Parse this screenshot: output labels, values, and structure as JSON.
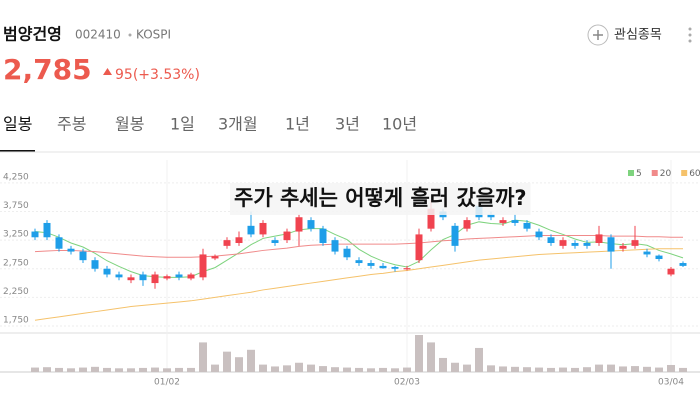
{
  "header": {
    "name": "범양건영",
    "code": "002410",
    "market": "KOSPI",
    "watch_label": "관심종목"
  },
  "price": {
    "value": "2,785",
    "change": "95(+3.53%)"
  },
  "tabs": {
    "items": [
      "일봉",
      "주봉",
      "월봉",
      "1일",
      "3개월",
      "1년",
      "3년",
      "10년"
    ],
    "selected": 0
  },
  "chart_data": {
    "type": "candlestick",
    "title": "주가 추세는 어떻게 흘러 갔을까?",
    "categories": [
      null,
      null,
      null,
      null,
      null,
      null,
      null,
      null,
      null,
      null,
      null,
      "01/02",
      null,
      null,
      null,
      null,
      null,
      null,
      null,
      null,
      null,
      null,
      null,
      null,
      null,
      null,
      null,
      null,
      null,
      null,
      null,
      "02/03",
      null,
      null,
      null,
      null,
      null,
      null,
      null,
      null,
      null,
      null,
      null,
      null,
      null,
      null,
      null,
      null,
      null,
      null,
      null,
      null,
      null,
      "03/04",
      null
    ],
    "open": [
      3400,
      3550,
      3300,
      3100,
      3050,
      2900,
      2750,
      2650,
      2550,
      2650,
      2500,
      2580,
      2650,
      2580,
      2600,
      2930,
      3150,
      3200,
      3500,
      3350,
      3250,
      3250,
      3400,
      3600,
      3450,
      3250,
      3100,
      2900,
      2850,
      2800,
      2780,
      2740,
      2900,
      3450,
      3750,
      3500,
      3450,
      3850,
      3700,
      3550,
      3600,
      3550,
      3400,
      3300,
      3150,
      3200,
      3200,
      3200,
      3300,
      3100,
      3150,
      3050,
      2980,
      2650,
      2850
    ],
    "high": [
      3450,
      3600,
      3350,
      3150,
      3100,
      2950,
      2800,
      2700,
      2650,
      2700,
      2700,
      2650,
      2700,
      2680,
      3100,
      3000,
      3300,
      3400,
      3750,
      3600,
      3300,
      3450,
      3700,
      3650,
      3500,
      3300,
      3150,
      2950,
      2900,
      2850,
      2800,
      2800,
      3450,
      3950,
      3800,
      3550,
      3650,
      3900,
      3750,
      3650,
      3700,
      3600,
      3450,
      3350,
      3300,
      3250,
      3250,
      3500,
      3350,
      3200,
      3500,
      3100,
      3000,
      2780,
      2880
    ],
    "low": [
      3250,
      3250,
      3050,
      3000,
      2850,
      2700,
      2600,
      2550,
      2500,
      2450,
      2400,
      2550,
      2550,
      2550,
      2550,
      2900,
      3100,
      3150,
      3300,
      3300,
      3150,
      3200,
      3150,
      3400,
      3150,
      3000,
      2900,
      2800,
      2750,
      2750,
      2700,
      2720,
      2850,
      3400,
      3600,
      3050,
      3400,
      3600,
      3600,
      3500,
      3500,
      3400,
      3250,
      3150,
      3100,
      3100,
      3100,
      3150,
      2750,
      3050,
      3100,
      2950,
      2880,
      2620,
      2780
    ],
    "close": [
      3300,
      3300,
      3100,
      3050,
      2900,
      2750,
      2650,
      2600,
      2600,
      2550,
      2650,
      2620,
      2600,
      2650,
      3000,
      2970,
      3250,
      3300,
      3350,
      3550,
      3200,
      3400,
      3650,
      3450,
      3200,
      3050,
      2950,
      2850,
      2800,
      2760,
      2750,
      2760,
      3350,
      3800,
      3650,
      3150,
      3600,
      3650,
      3650,
      3600,
      3550,
      3450,
      3300,
      3200,
      3250,
      3150,
      3150,
      3350,
      3050,
      3150,
      3250,
      3000,
      2920,
      2750,
      2800
    ],
    "volume": [
      120,
      130,
      110,
      100,
      120,
      140,
      110,
      100,
      100,
      110,
      120,
      100,
      110,
      110,
      800,
      200,
      550,
      400,
      600,
      200,
      150,
      180,
      250,
      200,
      160,
      130,
      120,
      110,
      100,
      110,
      100,
      120,
      1000,
      800,
      380,
      250,
      200,
      650,
      180,
      150,
      140,
      130,
      120,
      110,
      120,
      110,
      130,
      200,
      200,
      150,
      160,
      140,
      120,
      190,
      110
    ],
    "volume_color": "#c9c0c0",
    "up_color": "#f0434f",
    "down_color": "#1e9ee8",
    "ylim": [
      1680,
      4650
    ],
    "yticks": [
      {
        "value": 1750,
        "label": "1,750"
      },
      {
        "value": 2250,
        "label": "2,250"
      },
      {
        "value": 2750,
        "label": "2,750"
      },
      {
        "value": 3250,
        "label": "3,250"
      },
      {
        "value": 3750,
        "label": "3,750"
      },
      {
        "value": 4250,
        "label": "4,250"
      }
    ],
    "grid": true,
    "legend": "top-right",
    "series": [
      {
        "name": "5",
        "color": "#7ed37e",
        "values": [
          3400,
          3380,
          3300,
          3200,
          3130,
          3020,
          2890,
          2790,
          2700,
          2630,
          2610,
          2600,
          2600,
          2610,
          2700,
          2770,
          2900,
          3030,
          3170,
          3280,
          3320,
          3360,
          3430,
          3450,
          3450,
          3350,
          3260,
          3090,
          2970,
          2880,
          2820,
          2780,
          2880,
          3080,
          3260,
          3350,
          3510,
          3570,
          3540,
          3530,
          3600,
          3580,
          3510,
          3420,
          3350,
          3270,
          3210,
          3220,
          3190,
          3170,
          3190,
          3160,
          3070,
          3010,
          2940
        ]
      },
      {
        "name": "20",
        "color": "#f08a8a",
        "values": [
          3050,
          3060,
          3070,
          3070,
          3060,
          3050,
          3030,
          3010,
          2990,
          2970,
          2960,
          2950,
          2950,
          2950,
          2960,
          2970,
          2990,
          3010,
          3040,
          3070,
          3090,
          3110,
          3140,
          3160,
          3170,
          3180,
          3180,
          3180,
          3180,
          3180,
          3180,
          3190,
          3200,
          3220,
          3240,
          3250,
          3270,
          3280,
          3290,
          3300,
          3310,
          3320,
          3330,
          3330,
          3330,
          3330,
          3330,
          3330,
          3320,
          3320,
          3320,
          3310,
          3310,
          3300,
          3300
        ]
      },
      {
        "name": "60",
        "color": "#f5c26b",
        "values": [
          1850,
          1880,
          1910,
          1940,
          1970,
          2000,
          2030,
          2060,
          2090,
          2110,
          2130,
          2150,
          2170,
          2190,
          2220,
          2250,
          2280,
          2310,
          2340,
          2380,
          2410,
          2440,
          2470,
          2500,
          2530,
          2560,
          2590,
          2620,
          2650,
          2670,
          2700,
          2720,
          2750,
          2780,
          2810,
          2840,
          2870,
          2900,
          2920,
          2940,
          2960,
          2980,
          3000,
          3010,
          3020,
          3030,
          3040,
          3050,
          3060,
          3070,
          3080,
          3090,
          3100,
          3100,
          3100
        ]
      }
    ]
  }
}
